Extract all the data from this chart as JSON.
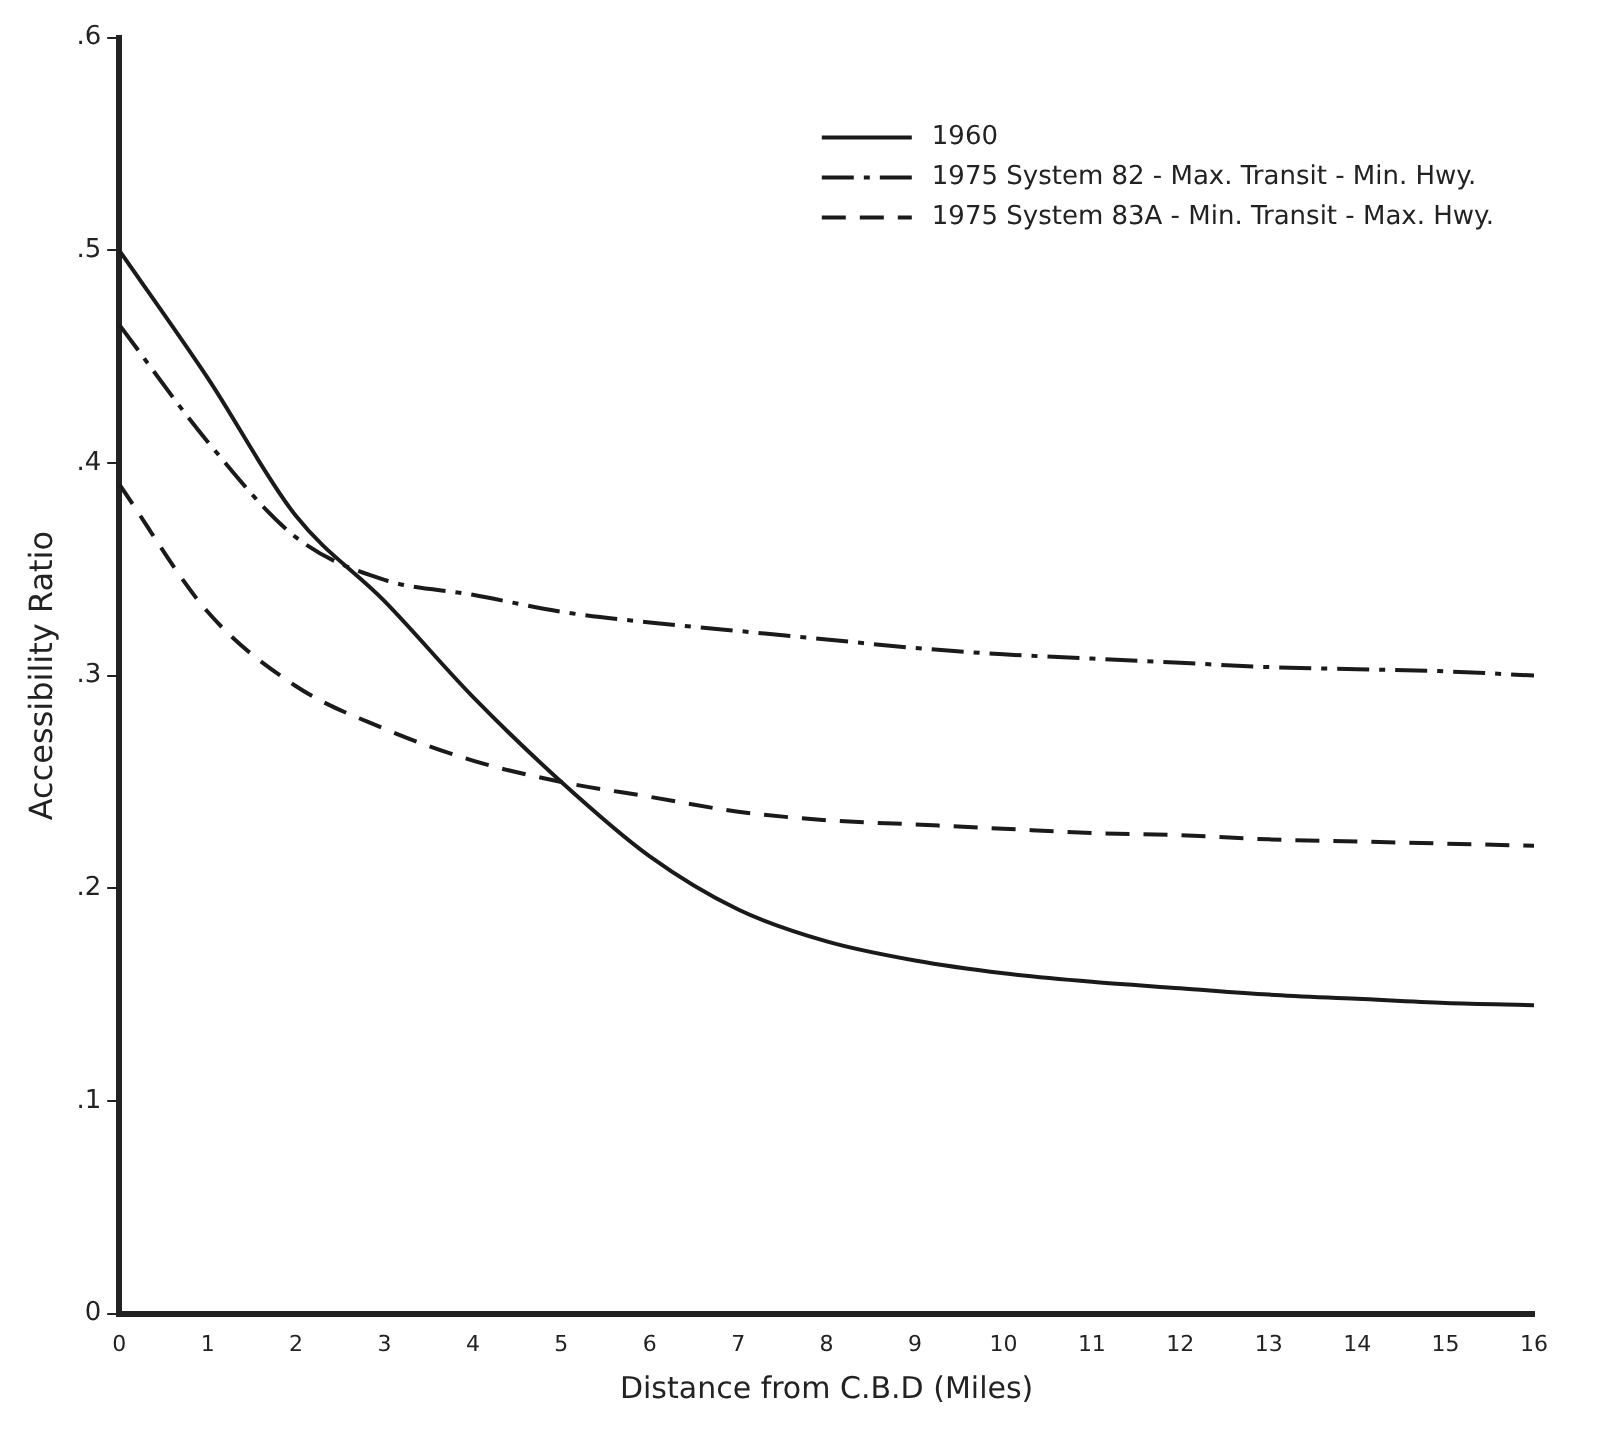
{
  "chart_data": {
    "type": "line",
    "xlabel": "Distance from C.B.D (Miles)",
    "ylabel": "Accessibility Ratio",
    "x": [
      0,
      1,
      2,
      3,
      4,
      5,
      6,
      7,
      8,
      9,
      10,
      11,
      12,
      13,
      14,
      15,
      16
    ],
    "series": [
      {
        "name": "1960",
        "color": "#1a1a1a",
        "line_style": "solid",
        "values": [
          0.5,
          0.44,
          0.375,
          0.335,
          0.29,
          0.25,
          0.215,
          0.19,
          0.175,
          0.166,
          0.16,
          0.156,
          0.153,
          0.15,
          0.148,
          0.146,
          0.145
        ]
      },
      {
        "name": "1975 System 82 - Max. Transit - Min. Hwy.",
        "color": "#1a1a1a",
        "line_style": "dashdot",
        "values": [
          0.465,
          0.41,
          0.365,
          0.345,
          0.338,
          0.33,
          0.325,
          0.321,
          0.317,
          0.313,
          0.31,
          0.308,
          0.306,
          0.304,
          0.303,
          0.302,
          0.3
        ]
      },
      {
        "name": "1975 System 83A - Min. Transit - Max. Hwy.",
        "color": "#1a1a1a",
        "line_style": "dashed",
        "values": [
          0.39,
          0.33,
          0.295,
          0.275,
          0.26,
          0.25,
          0.243,
          0.236,
          0.232,
          0.23,
          0.228,
          0.226,
          0.225,
          0.223,
          0.222,
          0.221,
          0.22
        ]
      }
    ],
    "xlim": [
      0,
      16
    ],
    "xticks": [
      0,
      1,
      2,
      3,
      4,
      5,
      6,
      7,
      8,
      9,
      10,
      11,
      12,
      13,
      14,
      15,
      16
    ],
    "ylim": [
      0,
      0.6
    ],
    "yticks": [
      {
        "value": 0,
        "label": "0"
      },
      {
        "value": 0.1,
        "label": ".1"
      },
      {
        "value": 0.2,
        "label": ".2"
      },
      {
        "value": 0.3,
        "label": ".3"
      },
      {
        "value": 0.4,
        "label": ".4"
      },
      {
        "value": 0.5,
        "label": ".5"
      },
      {
        "value": 0.6,
        "label": ".6"
      }
    ],
    "grid": false,
    "legend": "top right",
    "marker": "none"
  }
}
